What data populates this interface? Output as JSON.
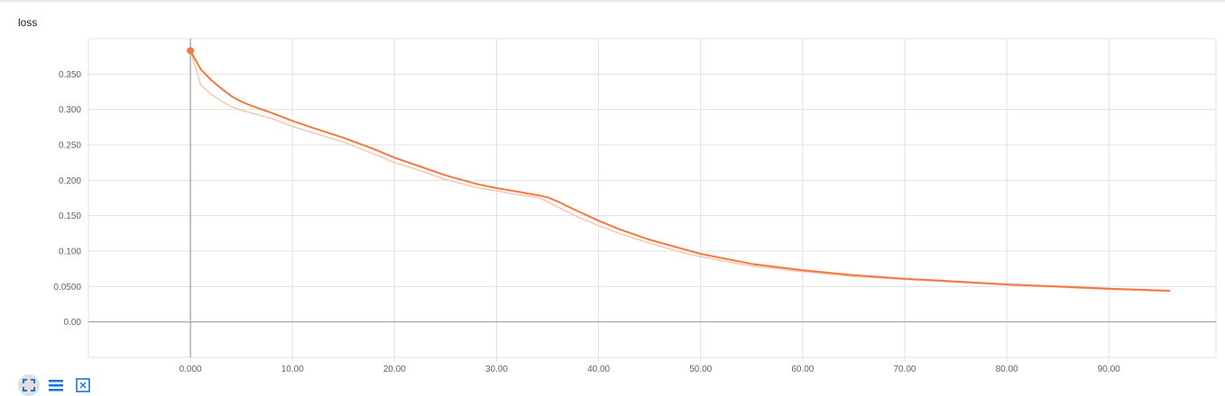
{
  "card": {
    "title": "loss"
  },
  "toolbar": {
    "items": [
      {
        "icon": "fullscreen-icon"
      },
      {
        "icon": "list-icon"
      },
      {
        "icon": "fit-domain-icon"
      }
    ]
  },
  "colors": {
    "series": "#f07a45",
    "series_raw": "#f9c7b0",
    "grid": "#e0e0e0",
    "axis": "#9e9e9e"
  },
  "chart_data": {
    "type": "line",
    "title": "loss",
    "xlabel": "",
    "ylabel": "",
    "xlim": [
      -10,
      100.5
    ],
    "ylim": [
      -0.05,
      0.4
    ],
    "x_ticks": [
      0,
      10,
      20,
      30,
      40,
      50,
      60,
      70,
      80,
      90
    ],
    "x_tick_labels": [
      "0.000",
      "10.00",
      "20.00",
      "30.00",
      "40.00",
      "50.00",
      "60.00",
      "70.00",
      "80.00",
      "90.00"
    ],
    "y_ticks": [
      0,
      0.05,
      0.1,
      0.15,
      0.2,
      0.25,
      0.3,
      0.35
    ],
    "y_tick_labels": [
      "0.00",
      "0.0500",
      "0.100",
      "0.150",
      "0.200",
      "0.250",
      "0.300",
      "0.350"
    ],
    "grid": true,
    "series": [
      {
        "x": [
          0,
          1,
          2,
          3,
          4,
          5,
          6,
          8,
          10,
          12,
          15,
          18,
          20,
          22,
          25,
          28,
          30,
          32,
          34,
          35,
          36,
          38,
          40,
          42,
          45,
          48,
          50,
          55,
          60,
          65,
          70,
          75,
          80,
          85,
          90,
          96
        ],
        "values": [
          0.383,
          0.357,
          0.342,
          0.33,
          0.319,
          0.311,
          0.305,
          0.295,
          0.284,
          0.274,
          0.26,
          0.244,
          0.232,
          0.222,
          0.207,
          0.195,
          0.189,
          0.184,
          0.179,
          0.176,
          0.17,
          0.156,
          0.143,
          0.131,
          0.116,
          0.104,
          0.096,
          0.082,
          0.073,
          0.066,
          0.061,
          0.057,
          0.053,
          0.05,
          0.047,
          0.044
        ]
      },
      {
        "x": [
          0,
          1,
          2,
          3,
          4,
          5,
          6,
          8,
          10,
          12,
          15,
          18,
          20,
          22,
          25,
          28,
          30,
          32,
          34,
          35,
          36,
          38,
          40,
          42,
          45,
          48,
          50,
          55,
          60,
          65,
          70,
          75,
          80,
          85,
          90,
          96
        ],
        "values": [
          0.383,
          0.335,
          0.322,
          0.312,
          0.304,
          0.299,
          0.295,
          0.287,
          0.276,
          0.267,
          0.254,
          0.237,
          0.225,
          0.216,
          0.201,
          0.19,
          0.185,
          0.18,
          0.176,
          0.17,
          0.162,
          0.148,
          0.136,
          0.125,
          0.111,
          0.099,
          0.092,
          0.079,
          0.071,
          0.064,
          0.06,
          0.056,
          0.052,
          0.049,
          0.046,
          0.043
        ]
      }
    ]
  }
}
